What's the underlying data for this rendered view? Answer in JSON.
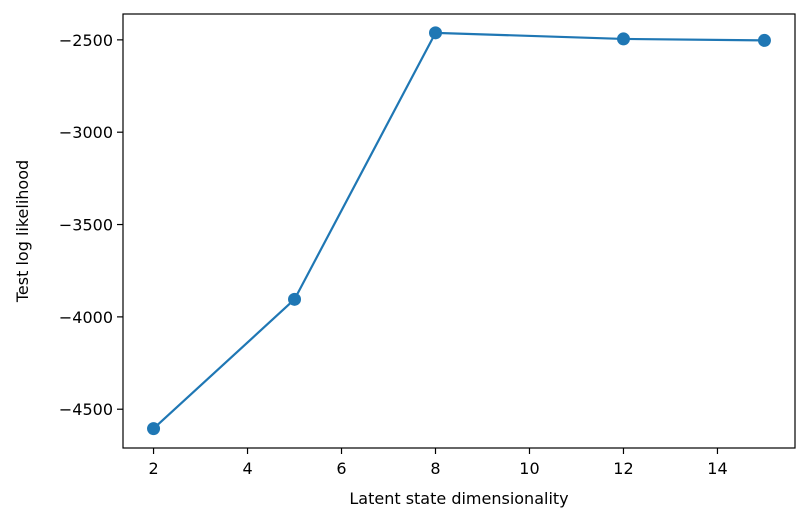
{
  "chart_data": {
    "type": "line",
    "title": "",
    "xlabel": "Latent state dimensionality",
    "ylabel": "Test log likelihood",
    "x": [
      2,
      5,
      8,
      12,
      15
    ],
    "series": [
      {
        "values": [
          -4605,
          -3905,
          -2462,
          -2495,
          -2503
        ]
      }
    ],
    "xlim": [
      1.35,
      15.65
    ],
    "ylim": [
      -4710,
      -2360
    ],
    "xticks": [
      2,
      4,
      6,
      8,
      10,
      12,
      14
    ],
    "yticks": [
      -4500,
      -4000,
      -3500,
      -3000,
      -2500
    ],
    "xtick_labels": [
      "2",
      "4",
      "6",
      "8",
      "10",
      "12",
      "14"
    ],
    "ytick_labels": [
      "−4500",
      "−4000",
      "−3500",
      "−3000",
      "−2500"
    ],
    "grid": false,
    "legend": "none",
    "colors": {
      "line": "#1f77b4",
      "marker": "#1f77b4",
      "axes": "#000000"
    }
  }
}
